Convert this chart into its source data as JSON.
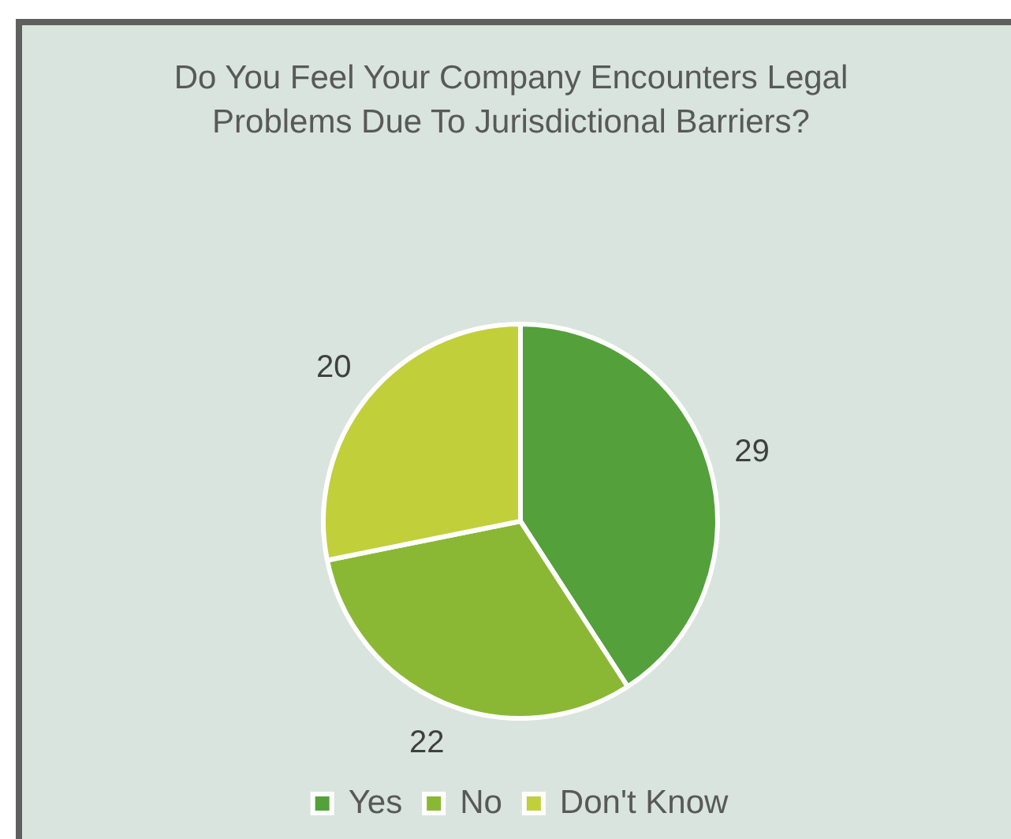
{
  "chart_data": {
    "type": "pie",
    "title": "Do You Feel Your Company Encounters Legal Problems Due To Jurisdictional Barriers?",
    "categories": [
      "Yes",
      "No",
      "Don't Know"
    ],
    "values": [
      29,
      22,
      20
    ],
    "colors": [
      "#54a03a",
      "#8bb834",
      "#c1cf3b"
    ],
    "data_labels": true,
    "legend": "bottom"
  }
}
